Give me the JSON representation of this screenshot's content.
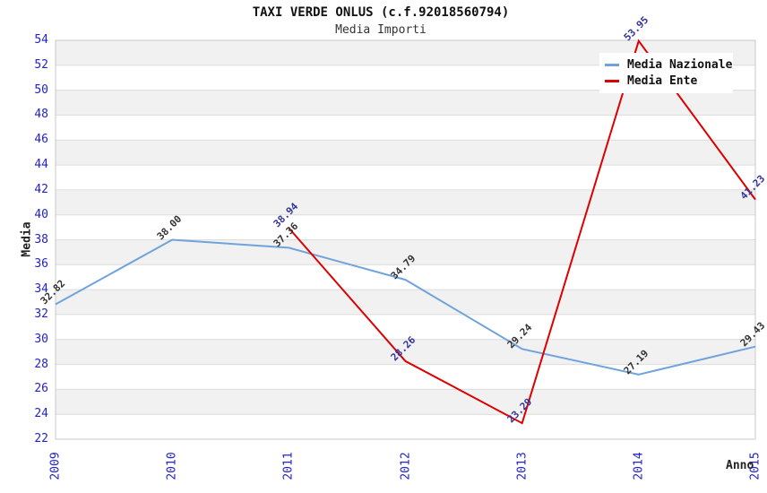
{
  "title": "TAXI VERDE ONLUS (c.f.92018560794)",
  "subtitle": "Media Importi",
  "colors": {
    "tick_label": "#2222CC",
    "band_gray": "#F1F1F1",
    "grid_line": "#DCDCDC",
    "plot_border": "#C9C9C9",
    "legend_bg": "#FFFFFF"
  },
  "chart_data": {
    "type": "line",
    "title": "TAXI VERDE ONLUS (c.f.92018560794)",
    "subtitle": "Media Importi",
    "xlabel": "Anno",
    "ylabel": "Media",
    "x": [
      2009,
      2010,
      2011,
      2012,
      2013,
      2014,
      2015
    ],
    "ylim": [
      22,
      54
    ],
    "ytick_step": 2,
    "grid": "horizontal alternating bands",
    "legend_position": "top-right",
    "series": [
      {
        "name": "Media Nazionale",
        "color": "#6FA3DC",
        "label_color": "#333333",
        "values": [
          32.82,
          38.0,
          37.36,
          34.79,
          29.24,
          27.19,
          29.43
        ]
      },
      {
        "name": "Media Ente",
        "color": "#DD0000",
        "label_color": "#333399",
        "values": [
          null,
          null,
          38.94,
          28.26,
          23.29,
          53.95,
          41.23
        ]
      }
    ]
  }
}
